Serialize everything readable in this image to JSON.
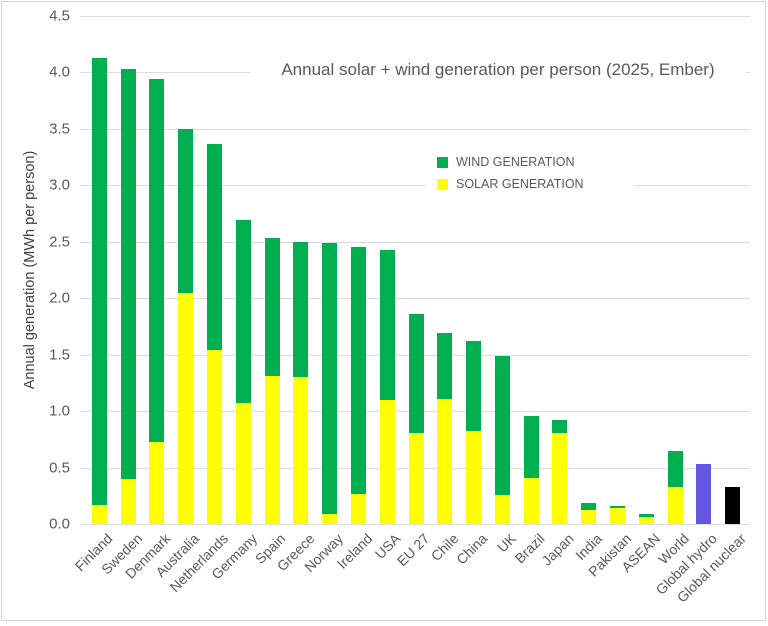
{
  "chart_data": {
    "type": "bar",
    "stacked": true,
    "title": "Annual solar + wind generation per person (2025, Ember)",
    "ylabel": "Annual generation (MWh per person)",
    "xlabel": "",
    "ylim": [
      0,
      4.5
    ],
    "ytick_step": 0.5,
    "yticks": [
      "0.0",
      "0.5",
      "1.0",
      "1.5",
      "2.0",
      "2.5",
      "3.0",
      "3.5",
      "4.0",
      "4.5"
    ],
    "grid": "horizontal",
    "legend_position": "inside-top-center",
    "categories": [
      "Finland",
      "Sweden",
      "Denmark",
      "Australia",
      "Netherlands",
      "Germany",
      "Spain",
      "Greece",
      "Norway",
      "Ireland",
      "USA",
      "EU 27",
      "Chile",
      "China",
      "UK",
      "Brazil",
      "Japan",
      "India",
      "Pakistan",
      "ASEAN",
      "World",
      "Global hydro",
      "Global nuclear"
    ],
    "series": [
      {
        "name": "SOLAR GENERATION",
        "color": "#FFFF00",
        "values": [
          0.17,
          0.4,
          0.73,
          2.05,
          1.54,
          1.07,
          1.31,
          1.3,
          0.09,
          0.27,
          1.1,
          0.81,
          1.11,
          0.82,
          0.26,
          0.41,
          0.81,
          0.12,
          0.14,
          0.06,
          0.33,
          0,
          0
        ]
      },
      {
        "name": "WIND GENERATION",
        "color": "#00B050",
        "values": [
          3.96,
          3.63,
          3.21,
          1.45,
          1.83,
          1.62,
          1.22,
          1.2,
          2.4,
          2.18,
          1.33,
          1.05,
          0.58,
          0.8,
          1.23,
          0.55,
          0.11,
          0.07,
          0.02,
          0.03,
          0.32,
          0,
          0
        ]
      }
    ],
    "special_bars": [
      {
        "category": "Global hydro",
        "value": 0.53,
        "color": "#6456E0"
      },
      {
        "category": "Global nuclear",
        "value": 0.33,
        "color": "#000000"
      }
    ],
    "legend": [
      {
        "label": "WIND GENERATION",
        "color": "#00B050"
      },
      {
        "label": "SOLAR GENERATION",
        "color": "#FFFF00"
      }
    ]
  },
  "colors": {
    "text": "#595959",
    "gridline": "#DCDCDC",
    "background": "#FFFFFF",
    "frame_border": "#D6D6DA"
  }
}
